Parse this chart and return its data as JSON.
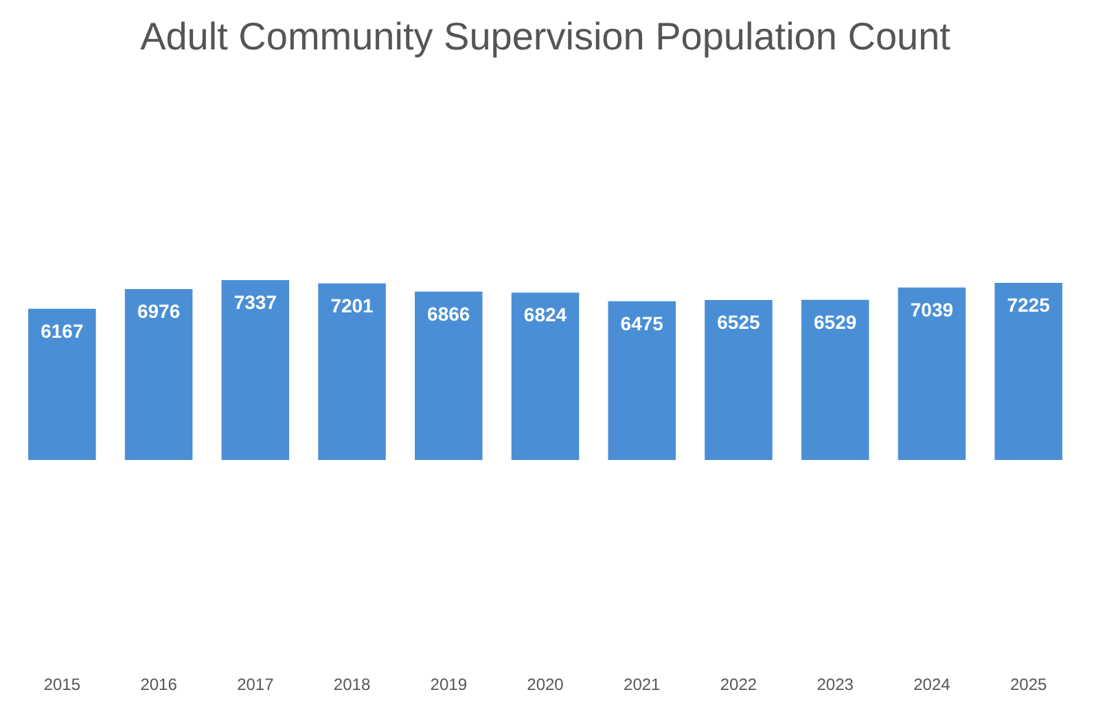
{
  "chart_data": {
    "type": "bar",
    "title": "Adult Community Supervision Population Count",
    "categories": [
      "2015",
      "2016",
      "2017",
      "2018",
      "2019",
      "2020",
      "2021",
      "2022",
      "2023",
      "2024",
      "2025"
    ],
    "values": [
      6167,
      6976,
      7337,
      7201,
      6866,
      6824,
      6475,
      6525,
      6529,
      7039,
      7225
    ],
    "color": "#4a8fd6",
    "tick_labels": "x",
    "data_labels": true,
    "grid": false
  }
}
